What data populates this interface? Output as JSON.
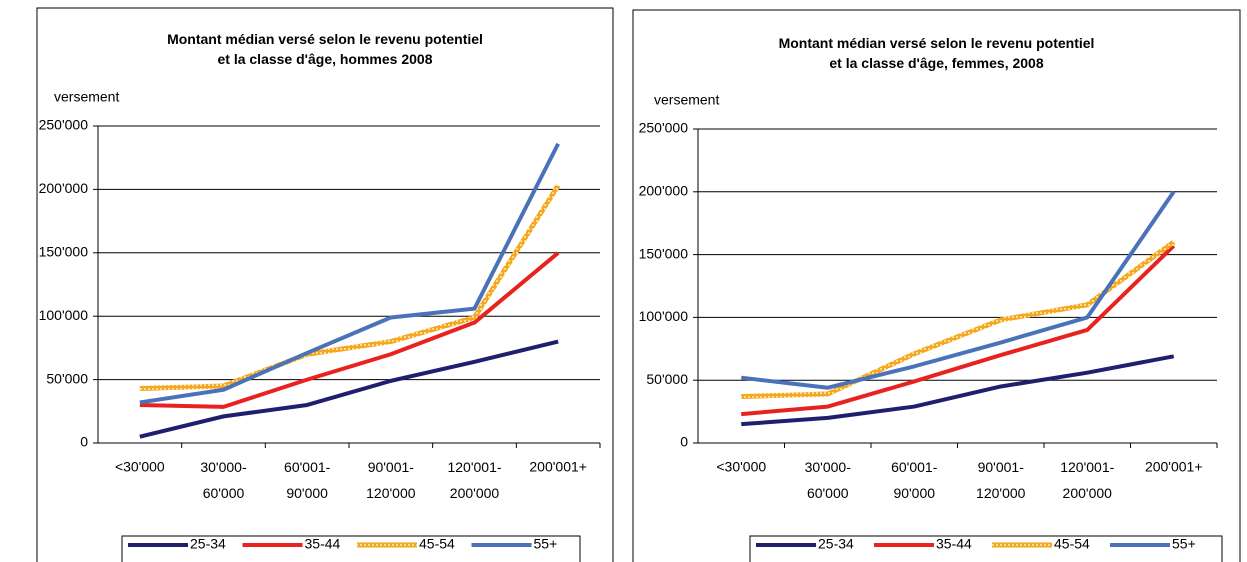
{
  "chart_data": [
    {
      "type": "line",
      "title": "Montant médian versé selon le revenu potentiel\net la classe d'âge, hommes 2008",
      "y_label": "versement",
      "categories": [
        "<30'000",
        "30'000-\n60'000",
        "60'001-\n90'000",
        "90'001-\n120'000",
        "120'001-\n200'000",
        "200'001+"
      ],
      "ylim": [
        0,
        250000
      ],
      "yticks": [
        0,
        {
          "value": 50000,
          "label": "50'000"
        },
        {
          "value": 100000,
          "label": "100'000"
        },
        {
          "value": 150000,
          "label": "150'000"
        },
        {
          "value": 200000,
          "label": "200'000"
        },
        {
          "value": 250000,
          "label": "250'000"
        }
      ],
      "grid": true,
      "legend": "bottom",
      "series": [
        {
          "name": "25-34",
          "color": "#1f1f6e",
          "values": [
            5000,
            21000,
            30000,
            49000,
            64000,
            80000
          ]
        },
        {
          "name": "35-44",
          "color": "#e8231f",
          "values": [
            30000,
            28500,
            50000,
            70000,
            95000,
            150000
          ]
        },
        {
          "name": "45-54",
          "color": "#f5a623",
          "values": [
            43000,
            45000,
            70000,
            80000,
            99000,
            203000
          ]
        },
        {
          "name": "55+",
          "color": "#4a72b8",
          "values": [
            32000,
            42000,
            71000,
            99000,
            106000,
            236000
          ]
        }
      ]
    },
    {
      "type": "line",
      "title": "Montant médian versé selon le revenu potentiel\net la classe d'âge, femmes, 2008",
      "y_label": "versement",
      "categories": [
        "<30'000",
        "30'000-\n60'000",
        "60'001-\n90'000",
        "90'001-\n120'000",
        "120'001-\n200'000",
        "200'001+"
      ],
      "ylim": [
        0,
        250000
      ],
      "yticks": [
        0,
        {
          "value": 50000,
          "label": "50'000"
        },
        {
          "value": 100000,
          "label": "100'000"
        },
        {
          "value": 150000,
          "label": "150'000"
        },
        {
          "value": 200000,
          "label": "200'000"
        },
        {
          "value": 250000,
          "label": "250'000"
        }
      ],
      "grid": true,
      "legend": "bottom",
      "series": [
        {
          "name": "25-34",
          "color": "#1f1f6e",
          "values": [
            15000,
            20000,
            29000,
            45000,
            56000,
            69000
          ]
        },
        {
          "name": "35-44",
          "color": "#e8231f",
          "values": [
            23000,
            29000,
            49000,
            70000,
            90000,
            157000
          ]
        },
        {
          "name": "45-54",
          "color": "#f5a623",
          "values": [
            37000,
            39000,
            71000,
            98000,
            110000,
            160000
          ]
        },
        {
          "name": "55+",
          "color": "#4a72b8",
          "values": [
            52000,
            44000,
            61000,
            80000,
            100000,
            200000
          ]
        }
      ]
    }
  ]
}
